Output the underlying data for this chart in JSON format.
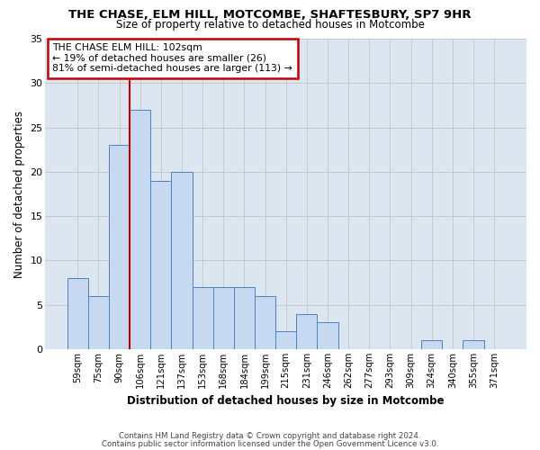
{
  "title1": "THE CHASE, ELM HILL, MOTCOMBE, SHAFTESBURY, SP7 9HR",
  "title2": "Size of property relative to detached houses in Motcombe",
  "xlabel": "Distribution of detached houses by size in Motcombe",
  "ylabel": "Number of detached properties",
  "footer1": "Contains HM Land Registry data © Crown copyright and database right 2024.",
  "footer2": "Contains public sector information licensed under the Open Government Licence v3.0.",
  "bin_labels": [
    "59sqm",
    "75sqm",
    "90sqm",
    "106sqm",
    "121sqm",
    "137sqm",
    "153sqm",
    "168sqm",
    "184sqm",
    "199sqm",
    "215sqm",
    "231sqm",
    "246sqm",
    "262sqm",
    "277sqm",
    "293sqm",
    "309sqm",
    "324sqm",
    "340sqm",
    "355sqm",
    "371sqm"
  ],
  "bar_heights": [
    8,
    6,
    23,
    27,
    19,
    20,
    7,
    7,
    7,
    6,
    2,
    4,
    3,
    0,
    0,
    0,
    0,
    1,
    0,
    1,
    0
  ],
  "bar_color": "#c6d9f1",
  "bar_edge_color": "#4f81bd",
  "vline_x_index": 3,
  "vline_color": "#c00000",
  "annotation_title": "THE CHASE ELM HILL: 102sqm",
  "annotation_line2": "← 19% of detached houses are smaller (26)",
  "annotation_line3": "81% of semi-detached houses are larger (113) →",
  "annotation_box_edge": "#c00000",
  "ylim": [
    0,
    35
  ],
  "yticks": [
    0,
    5,
    10,
    15,
    20,
    25,
    30,
    35
  ],
  "grid_color": "#c8c8c8",
  "axes_bg": "#dce6f1"
}
